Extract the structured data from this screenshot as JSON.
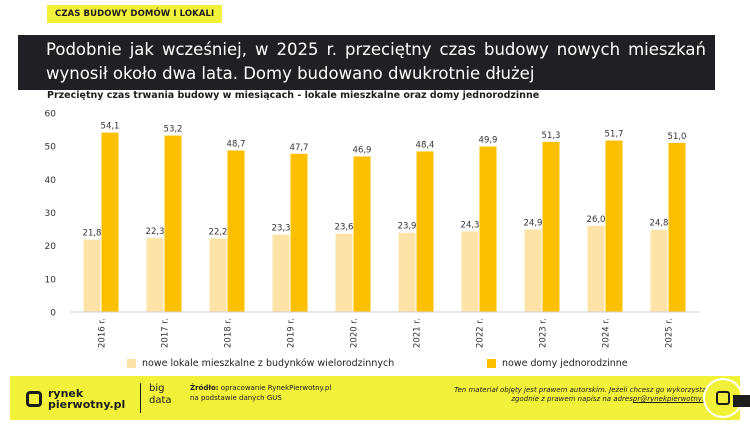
{
  "header": {
    "tag": "CZAS BUDOWY DOMÓW I LOKALI",
    "title": "Podobnie jak wcześniej, w 2025 r. przeciętny czas budowy nowych mieszkań wynosił około dwa lata. Domy budowano dwukrotnie dłużej",
    "subtitle": "Przeciętny czas trwania budowy w miesiącach - lokale mieszkalne oraz domy jednorodzinne"
  },
  "chart_data": {
    "type": "bar",
    "categories": [
      "2016 r.",
      "2017 r.",
      "2018 r.",
      "2019 r.",
      "2020 r.",
      "2021 r.",
      "2022 r.",
      "2023 r.",
      "2024 r.",
      "2025 r."
    ],
    "series": [
      {
        "name": "nowe lokale mieszkalne z budynków wielorodzinnych",
        "color": "#fde3a8",
        "values": [
          21.8,
          22.3,
          22.2,
          23.3,
          23.6,
          23.9,
          24.3,
          24.9,
          26.0,
          24.8
        ],
        "labels": [
          "21,8",
          "22,3",
          "22,2",
          "23,3",
          "23,6",
          "23,9",
          "24,3",
          "24,9",
          "26,0",
          "24,8"
        ]
      },
      {
        "name": "nowe domy jednorodzinne",
        "color": "#fcc000",
        "values": [
          54.1,
          53.2,
          48.7,
          47.7,
          46.9,
          48.4,
          49.9,
          51.3,
          51.7,
          51.0
        ],
        "labels": [
          "54,1",
          "53,2",
          "48,7",
          "47,7",
          "46,9",
          "48,4",
          "49,9",
          "51,3",
          "51,7",
          "51,0"
        ]
      }
    ],
    "ylim": [
      0,
      60
    ],
    "yticks": [
      "0",
      "10",
      "20",
      "30",
      "40",
      "50",
      "60"
    ],
    "grid": false,
    "legend": "bottom"
  },
  "footer": {
    "logo_line1": "rynek",
    "logo_line2": "pierwotny.pl",
    "bigdata_line1": "big",
    "bigdata_line2": "data",
    "source_label": "Źródło:",
    "source_line1": "opracowanie RynekPierwotny.pl",
    "source_line2": "na podstawie danych GUS",
    "copyright_line1": "Ten materiał objęty jest prawem autorskim. Jeżeli chcesz go wykorzystać",
    "copyright_line2": "zgodnie z prawem napisz na adres",
    "copyright_email": "pr@rynekpierwotny.pl"
  },
  "icons": {
    "logo": "rynekpierwotny-logo-icon",
    "side_button": "rynekpierwotny-round-button-icon"
  },
  "colors": {
    "accent": "#f2f13a",
    "dark": "#1f1f24"
  }
}
